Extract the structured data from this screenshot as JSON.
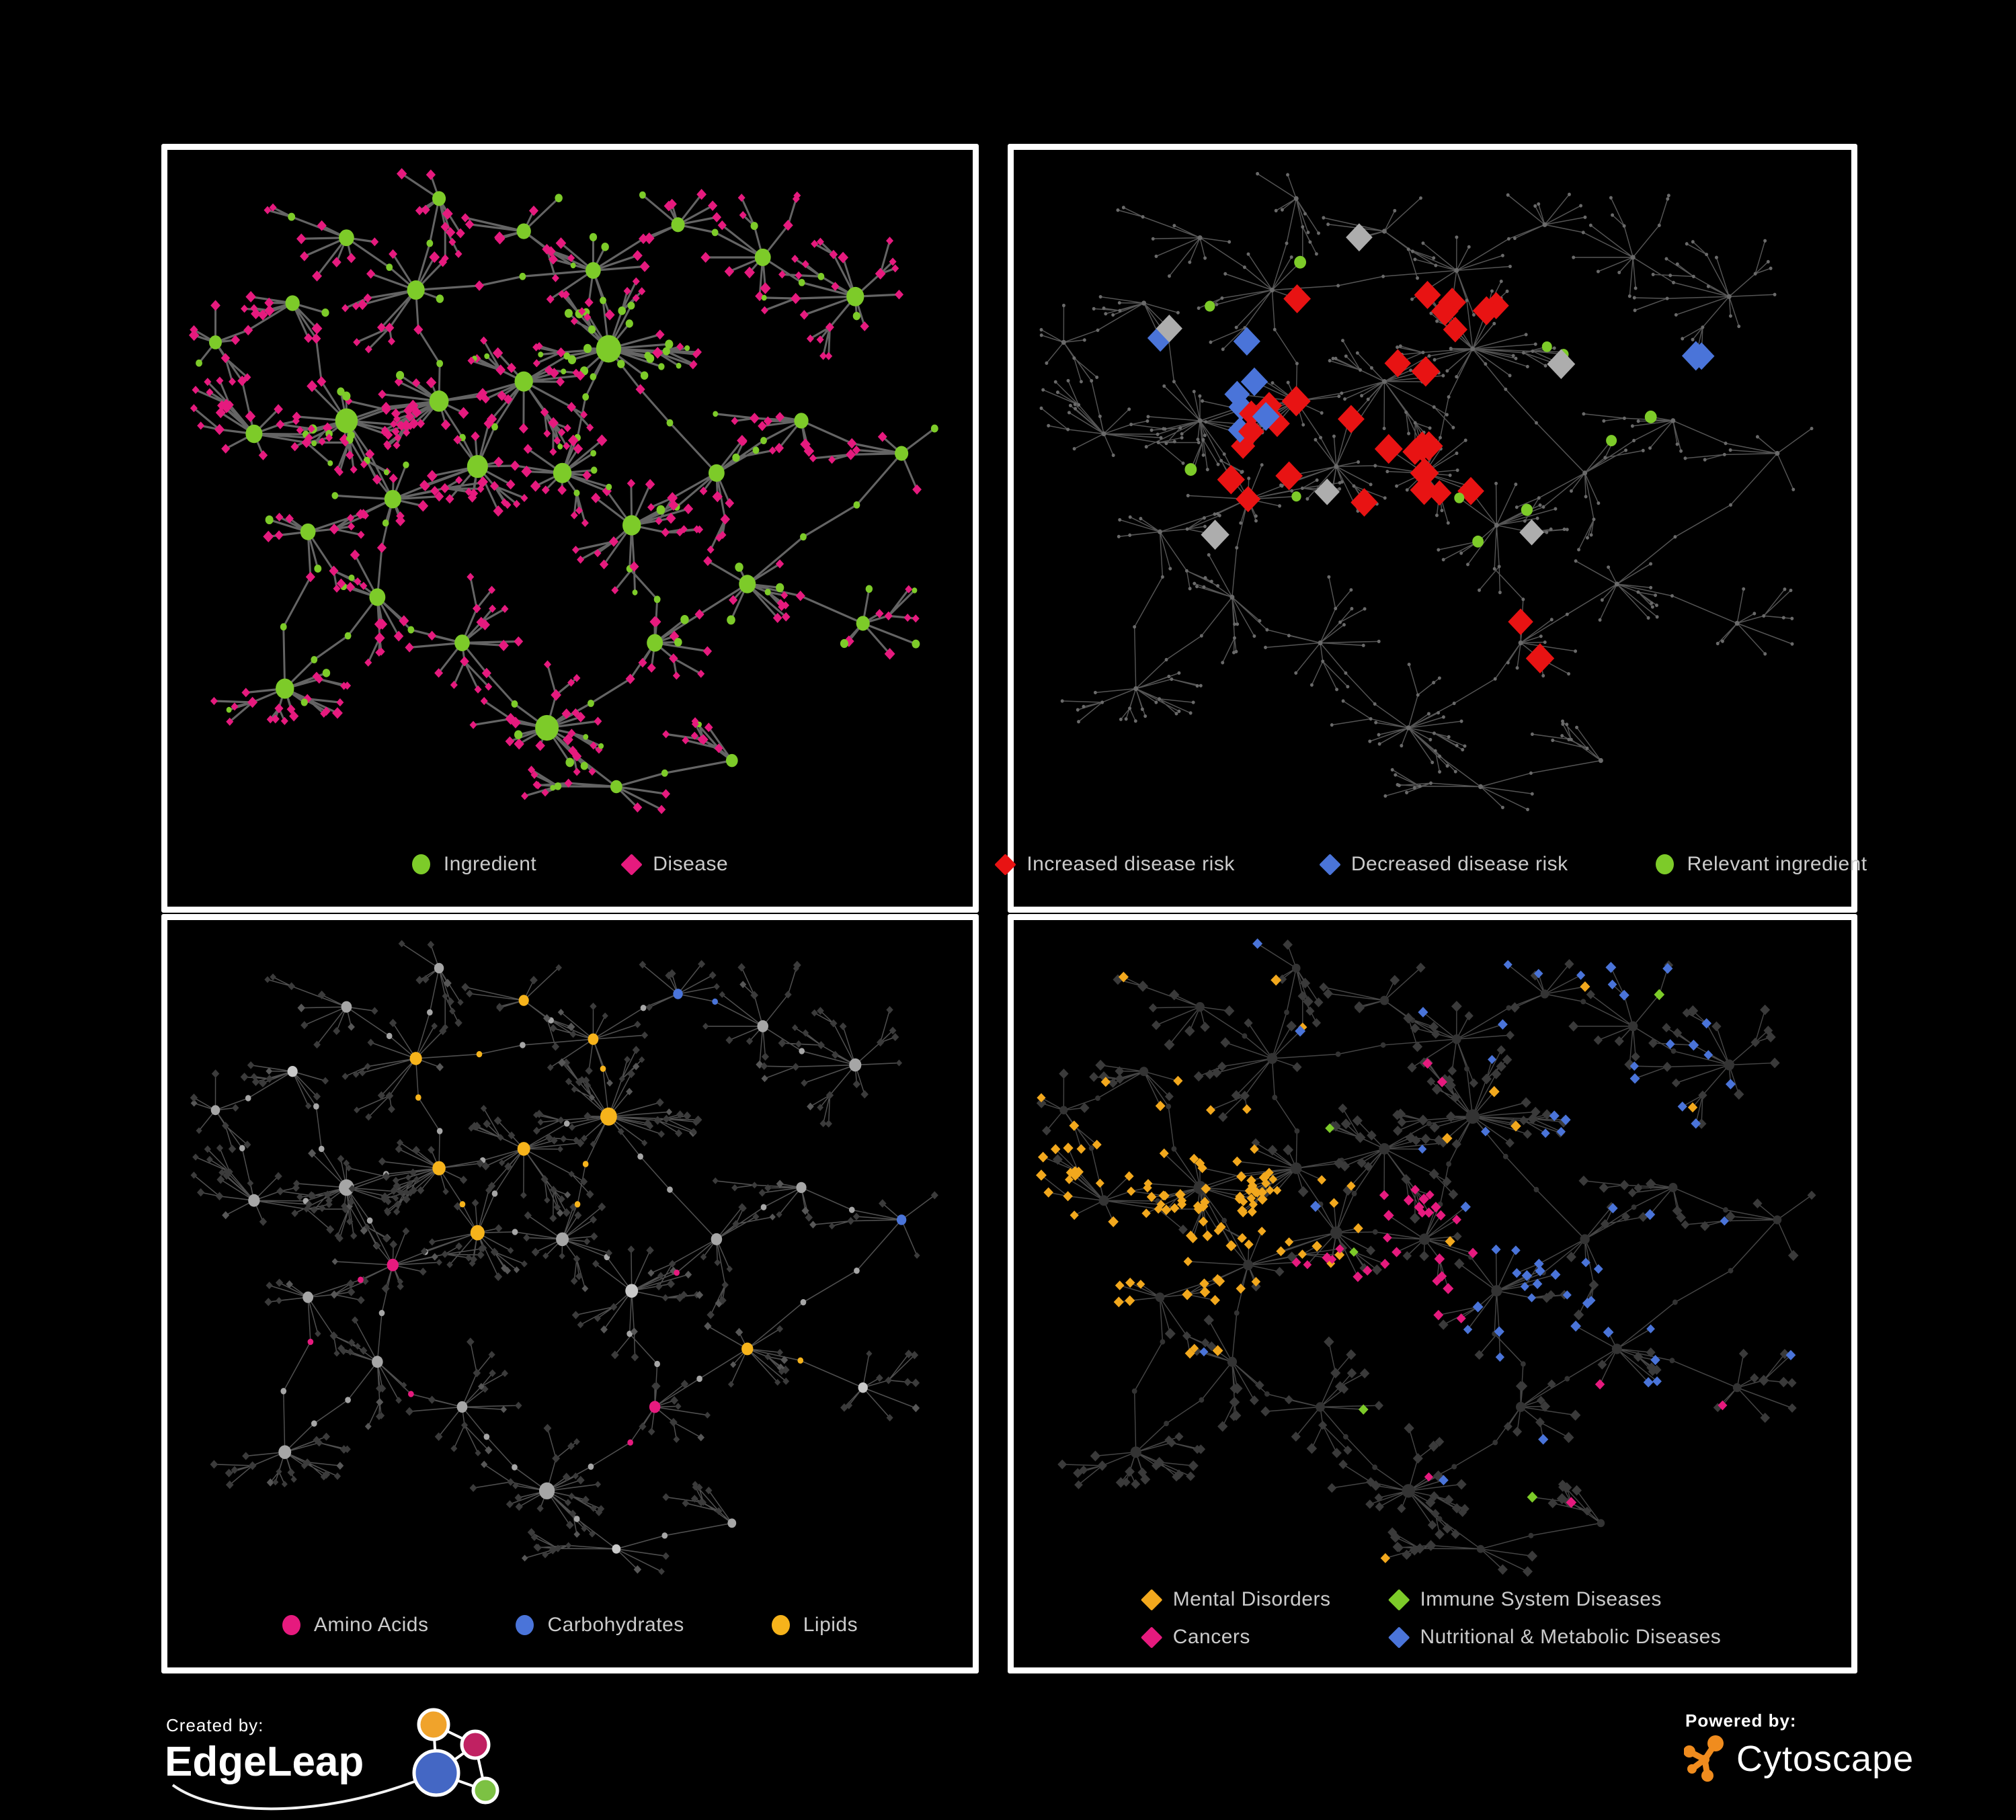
{
  "page": {
    "background": "#000000",
    "panel_border": "#ffffff"
  },
  "panels": [
    {
      "id": "ingredient-disease",
      "legend": [
        {
          "label": "Ingredient",
          "shape": "circle",
          "color": "#7DCB29"
        },
        {
          "label": "Disease",
          "shape": "diamond",
          "color": "#E61A7E"
        }
      ]
    },
    {
      "id": "disease-risk",
      "legend": [
        {
          "label": "Increased disease risk",
          "shape": "diamond",
          "color": "#E81313"
        },
        {
          "label": "Decreased disease risk",
          "shape": "diamond",
          "color": "#4A74D9"
        },
        {
          "label": "Relevant ingredient",
          "shape": "circle",
          "color": "#7DCB29"
        }
      ]
    },
    {
      "id": "nutrient-class",
      "legend": [
        {
          "label": "Amino Acids",
          "shape": "circle",
          "color": "#E61A7E"
        },
        {
          "label": "Carbohydrates",
          "shape": "circle",
          "color": "#4A74D9"
        },
        {
          "label": "Lipids",
          "shape": "circle",
          "color": "#F6B31B"
        }
      ]
    },
    {
      "id": "disease-category",
      "legend_columns": 2,
      "legend": [
        {
          "label": "Mental Disorders",
          "shape": "diamond",
          "color": "#F2A81D"
        },
        {
          "label": "Immune System Diseases",
          "shape": "diamond",
          "color": "#7DCB29"
        },
        {
          "label": "Cancers",
          "shape": "diamond",
          "color": "#E61A7E"
        },
        {
          "label": "Nutritional & Metabolic Diseases",
          "shape": "diamond",
          "color": "#4A74D9"
        }
      ]
    }
  ],
  "footer": {
    "created_by_label": "Created by:",
    "created_by_name": "EdgeLeap",
    "powered_by_label": "Powered by:",
    "powered_by_name": "Cytoscape",
    "edgeleap_colors": {
      "orange": "#F0A32B",
      "magenta": "#C02162",
      "blue": "#4467C4",
      "green": "#7CC143",
      "stroke": "#ffffff"
    },
    "cytoscape_color": "#F08C1E"
  },
  "chart_data": {
    "type": "network",
    "description": "Same ingredient-disease association network rendered four times with different colorings: (1) node type, (2) disease risk direction, (3) ingredient nutrient class, (4) disease category.",
    "seed": 42,
    "hubs": [
      [
        0.33,
        0.05,
        6
      ],
      [
        0.21,
        0.11,
        8
      ],
      [
        0.44,
        0.1,
        7
      ],
      [
        0.3,
        0.19,
        11
      ],
      [
        0.14,
        0.21,
        7
      ],
      [
        0.04,
        0.27,
        5
      ],
      [
        0.53,
        0.16,
        8
      ],
      [
        0.64,
        0.09,
        6
      ],
      [
        0.75,
        0.14,
        9
      ],
      [
        0.87,
        0.2,
        11
      ],
      [
        0.55,
        0.28,
        20,
        0.8
      ],
      [
        0.44,
        0.33,
        12
      ],
      [
        0.33,
        0.36,
        13
      ],
      [
        0.21,
        0.39,
        17,
        0.35
      ],
      [
        0.09,
        0.41,
        10
      ],
      [
        0.38,
        0.46,
        15
      ],
      [
        0.49,
        0.47,
        12
      ],
      [
        0.27,
        0.51,
        10
      ],
      [
        0.16,
        0.56,
        8
      ],
      [
        0.58,
        0.55,
        12
      ],
      [
        0.69,
        0.47,
        9
      ],
      [
        0.8,
        0.39,
        7
      ],
      [
        0.93,
        0.44,
        6
      ],
      [
        0.25,
        0.66,
        9
      ],
      [
        0.36,
        0.73,
        8
      ],
      [
        0.13,
        0.8,
        12
      ],
      [
        0.47,
        0.86,
        18
      ],
      [
        0.61,
        0.73,
        9
      ],
      [
        0.73,
        0.64,
        10
      ],
      [
        0.88,
        0.7,
        6
      ],
      [
        0.56,
        0.95,
        4
      ],
      [
        0.71,
        0.91,
        4
      ]
    ],
    "hub_links": [
      [
        0,
        3
      ],
      [
        1,
        3
      ],
      [
        2,
        6
      ],
      [
        3,
        12
      ],
      [
        4,
        5
      ],
      [
        4,
        13
      ],
      [
        3,
        6
      ],
      [
        6,
        7
      ],
      [
        6,
        10
      ],
      [
        7,
        8
      ],
      [
        8,
        9
      ],
      [
        10,
        11
      ],
      [
        10,
        16
      ],
      [
        10,
        20
      ],
      [
        11,
        12
      ],
      [
        11,
        15
      ],
      [
        12,
        13
      ],
      [
        13,
        14
      ],
      [
        13,
        17
      ],
      [
        15,
        16
      ],
      [
        15,
        17
      ],
      [
        15,
        12
      ],
      [
        16,
        19
      ],
      [
        17,
        18
      ],
      [
        18,
        25
      ],
      [
        17,
        23
      ],
      [
        19,
        20
      ],
      [
        19,
        27
      ],
      [
        20,
        21
      ],
      [
        21,
        22
      ],
      [
        23,
        24
      ],
      [
        23,
        25
      ],
      [
        24,
        26
      ],
      [
        26,
        30
      ],
      [
        26,
        27
      ],
      [
        27,
        28
      ],
      [
        28,
        29
      ],
      [
        28,
        22
      ],
      [
        30,
        31
      ],
      [
        14,
        5
      ]
    ],
    "leaf_green_bias_default": 0.15,
    "panels": [
      {
        "coloring": "bipartite",
        "edge": {
          "color": "#6F6F6F",
          "width": 3.0,
          "opacity": 0.9
        },
        "palette": {
          "ingredient": "#7DCB29",
          "disease": "#E61A7E"
        }
      },
      {
        "coloring": "risk",
        "edge": {
          "color": "#585858",
          "width": 1.4,
          "opacity": 0.95
        },
        "palette": {
          "increased": "#E81313",
          "decreased": "#4A74D9",
          "neutral": "#ADADAD",
          "ingredient": "#7DCB29",
          "base": "#6A6A6A"
        },
        "counts": {
          "red": 30,
          "blue": 9,
          "gray": 10,
          "green": 27
        },
        "forced": [
          {
            "x": 0.8,
            "y": 0.335,
            "cls": "blue"
          },
          {
            "x": 0.825,
            "y": 0.34,
            "cls": "blue"
          },
          {
            "x": 0.775,
            "y": 0.355,
            "cls": "green"
          },
          {
            "x": 0.59,
            "y": 0.69,
            "cls": "red"
          },
          {
            "x": 0.62,
            "y": 0.745,
            "cls": "red"
          }
        ]
      },
      {
        "coloring": "nutrient",
        "edge": {
          "color": "#8F8F8F",
          "width": 1.5,
          "opacity": 0.55
        },
        "palette": {
          "amino": "#E61A7E",
          "carb": "#4A74D9",
          "lipid": "#F6B31B",
          "node": "#A6A6A6",
          "node2": "#C9C9C9",
          "leaf": "#3B3B3B"
        }
      },
      {
        "coloring": "category",
        "edge": {
          "color": "#8A8A8A",
          "width": 1.4,
          "opacity": 0.5
        },
        "palette": {
          "mental": "#F2A81D",
          "immune": "#7DCB29",
          "cancer": "#E61A7E",
          "nutrimetab": "#4A74D9",
          "leaf": "#3A3A3A",
          "node": "#333333"
        }
      }
    ]
  }
}
